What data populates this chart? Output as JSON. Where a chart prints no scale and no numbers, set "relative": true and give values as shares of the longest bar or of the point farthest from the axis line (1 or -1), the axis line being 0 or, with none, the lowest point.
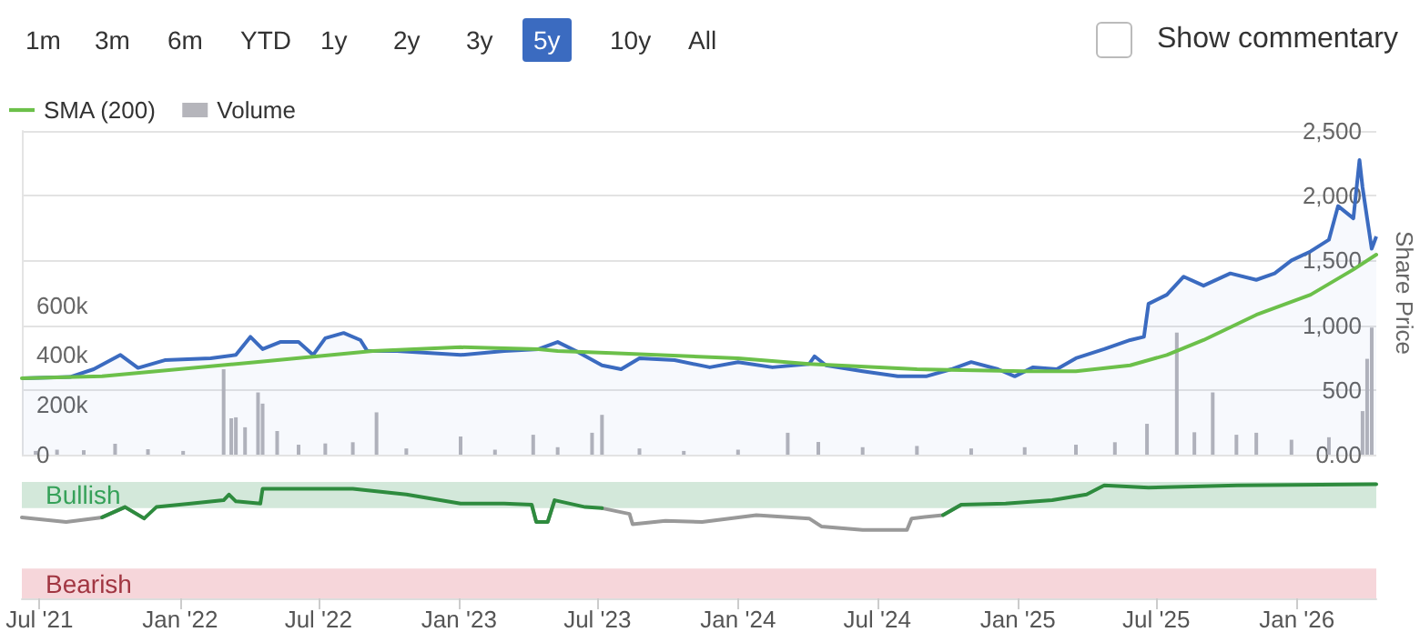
{
  "chart_data": [
    {
      "type": "area",
      "annotations": [
        "1m",
        "3m",
        "6m",
        "YTD",
        "1y",
        "2y",
        "3y",
        "5y",
        "10y",
        "All",
        "Show commentary"
      ],
      "ylabel": "Share Price",
      "legend": "top left",
      "grid": "y",
      "marker": "none",
      "line_style": "solid",
      "tick_labels": "y",
      "xlim": [
        "2021-06-08",
        "2026-04-15"
      ],
      "ylim": [
        0,
        2500
      ],
      "yticks": [
        {
          "value": 0,
          "label": "0.00"
        },
        {
          "value": 500,
          "label": "500"
        },
        {
          "value": 1000,
          "label": "1,000"
        },
        {
          "value": 1500,
          "label": "1,500"
        },
        {
          "value": 2000,
          "label": "2,000"
        },
        {
          "value": 2500,
          "label": "2,500"
        }
      ],
      "y2lim": [
        0,
        1300000
      ],
      "y2ticks": [
        0,
        {
          "value": 200000,
          "label": "200k"
        },
        {
          "value": 400000,
          "label": "400k"
        },
        {
          "value": 600000,
          "label": "600k"
        }
      ],
      "series": [
        {
          "color": "#3b6bc0",
          "x": [
            "2021-06-08",
            "2021-08-10",
            "2021-09-10",
            "2021-10-15",
            "2021-11-07",
            "2021-12-12",
            "2022-02-10",
            "2022-03-15",
            "2022-04-03",
            "2022-04-19",
            "2022-05-12",
            "2022-06-05",
            "2022-06-24",
            "2022-07-10",
            "2022-08-03",
            "2022-08-25",
            "2022-09-03",
            "2022-10-12",
            "2023-01-03",
            "2023-03-01",
            "2023-04-15",
            "2023-05-10",
            "2023-06-03",
            "2023-07-07",
            "2023-08-01",
            "2023-08-25",
            "2023-10-10",
            "2023-11-25",
            "2024-01-01",
            "2024-02-15",
            "2024-04-03",
            "2024-04-10",
            "2024-04-25",
            "2024-06-12",
            "2024-07-28",
            "2024-09-03",
            "2024-10-06",
            "2024-11-01",
            "2024-12-06",
            "2024-12-28",
            "2025-01-21",
            "2025-02-21",
            "2025-03-18",
            "2025-04-24",
            "2025-05-28",
            "2025-06-15",
            "2025-06-21",
            "2025-07-15",
            "2025-08-06",
            "2025-09-01",
            "2025-10-06",
            "2025-11-09",
            "2025-12-03",
            "2025-12-25",
            "2026-01-19",
            "2026-02-12",
            "2026-02-24",
            "2026-03-16",
            "2026-03-24",
            "2026-03-28",
            "2026-04-03",
            "2026-04-09",
            "2026-04-15"
          ],
          "values": [
            590,
            600,
            660,
            770,
            670,
            730,
            745,
            770,
            910,
            815,
            870,
            870,
            770,
            900,
            940,
            885,
            800,
            800,
            770,
            800,
            815,
            870,
            800,
            690,
            660,
            745,
            730,
            675,
            715,
            675,
            700,
            760,
            690,
            645,
            605,
            605,
            660,
            715,
            660,
            605,
            675,
            660,
            745,
            815,
            885,
            910,
            1165,
            1235,
            1375,
            1305,
            1400,
            1350,
            1400,
            1500,
            1570,
            1660,
            1920,
            1825,
            2275,
            2065,
            1825,
            1590,
            1685
          ]
        },
        {
          "type": "line",
          "name": "SMA (200)",
          "color": "#6cc04a",
          "x": [
            "2021-06-08",
            "2021-09-21",
            "2022-04-10",
            "2022-09-10",
            "2023-01-03",
            "2023-04-15",
            "2023-05-10",
            "2023-07-20",
            "2024-01-01",
            "2024-04-03",
            "2024-08-22",
            "2025-01-10",
            "2025-03-18",
            "2025-05-28",
            "2025-07-15",
            "2025-09-01",
            "2025-11-09",
            "2026-01-19",
            "2026-03-16",
            "2026-04-15"
          ],
          "values": [
            590,
            605,
            715,
            800,
            830,
            815,
            800,
            785,
            745,
            700,
            660,
            645,
            645,
            690,
            770,
            885,
            1080,
            1235,
            1430,
            1545
          ]
        },
        {
          "type": "bar",
          "name": "Volume",
          "axis": "y2",
          "color": "#b5b5bb",
          "x": [
            "2021-06-26",
            "2021-07-24",
            "2021-08-28",
            "2021-10-08",
            "2021-11-20",
            "2022-01-05",
            "2022-02-27",
            "2022-03-09",
            "2022-03-15",
            "2022-03-27",
            "2022-04-13",
            "2022-04-19",
            "2022-05-08",
            "2022-06-05",
            "2022-07-10",
            "2022-08-15",
            "2022-09-15",
            "2022-10-24",
            "2023-01-03",
            "2023-02-17",
            "2023-04-08",
            "2023-05-10",
            "2023-06-24",
            "2023-07-07",
            "2023-08-25",
            "2023-10-22",
            "2024-01-01",
            "2024-03-06",
            "2024-04-15",
            "2024-06-12",
            "2024-08-22",
            "2024-11-01",
            "2025-01-10",
            "2025-03-18",
            "2025-05-08",
            "2025-06-19",
            "2025-07-28",
            "2025-08-20",
            "2025-09-13",
            "2025-10-14",
            "2025-11-09",
            "2025-12-25",
            "2026-02-12",
            "2026-03-28",
            "2026-04-03",
            "2026-04-09"
          ],
          "values": [
            15000,
            20000,
            18000,
            44000,
            22000,
            15000,
            343000,
            146000,
            150000,
            110000,
            250000,
            205000,
            95000,
            40000,
            45000,
            50000,
            170000,
            25000,
            73000,
            20000,
            80000,
            30000,
            88000,
            160000,
            25000,
            15000,
            20000,
            88000,
            51000,
            30000,
            35000,
            25000,
            30000,
            40000,
            50000,
            124000,
            490000,
            90000,
            250000,
            80000,
            88000,
            60000,
            70000,
            175000,
            385000,
            510000
          ]
        }
      ]
    },
    {
      "type": "line",
      "line_style": "solid",
      "marker": "none",
      "grid": false,
      "relative": true,
      "annotations": [
        "0"
      ],
      "xlim": [
        "2021-06-08",
        "2026-04-15"
      ],
      "xticks": [
        {
          "value": "2021-07-01",
          "label": "Jul '21"
        },
        {
          "value": "2022-01-01",
          "label": "Jan '22"
        },
        {
          "value": "2022-07-01",
          "label": "Jul '22"
        },
        {
          "value": "2023-01-01",
          "label": "Jan '23"
        },
        {
          "value": "2023-07-01",
          "label": "Jul '23"
        },
        {
          "value": "2024-01-01",
          "label": "Jan '24"
        },
        {
          "value": "2024-07-01",
          "label": "Jul '24"
        },
        {
          "value": "2025-01-01",
          "label": "Jan '25"
        },
        {
          "value": "2025-07-01",
          "label": "Jul '25"
        },
        {
          "value": "2026-01-01",
          "label": "Jan '26"
        }
      ],
      "bands": [
        {
          "axis": "y",
          "from": 0.79,
          "to": 1.02,
          "label": "Bullish",
          "color": "#d3e8da"
        },
        {
          "axis": "y",
          "from": 0,
          "to": 0.26,
          "label": "Bearish",
          "color": "#f6d6da"
        }
      ],
      "x": [
        "2021-06-08",
        "2021-08-05",
        "2021-09-21",
        "2021-10-21",
        "2021-11-15",
        "2021-12-01",
        "2022-01-15",
        "2022-02-27",
        "2022-03-06",
        "2022-03-15",
        "2022-04-16",
        "2022-04-19",
        "2022-05-24",
        "2022-08-15",
        "2022-10-24",
        "2023-01-03",
        "2023-03-01",
        "2023-04-06",
        "2023-04-12",
        "2023-04-27",
        "2023-05-06",
        "2023-06-15",
        "2023-07-07",
        "2023-08-12",
        "2023-08-16",
        "2023-09-28",
        "2023-11-15",
        "2024-01-25",
        "2024-04-03",
        "2024-04-19",
        "2024-06-12",
        "2024-08-09",
        "2024-08-15",
        "2024-09-25",
        "2024-10-19",
        "2024-12-16",
        "2025-02-15",
        "2025-04-01",
        "2025-04-24",
        "2025-06-21",
        "2025-10-15",
        "2026-04-15"
      ],
      "series": [
        {
          "color": "#999999",
          "values": [
            0.71,
            0.67,
            0.71,
            0.8,
            0.7,
            null,
            null,
            null,
            null,
            null,
            null,
            null,
            null,
            null,
            null,
            null,
            null,
            0.82,
            0.67,
            0.67,
            0.86,
            null,
            0.79,
            0.74,
            0.65,
            0.68,
            0.67,
            0.73,
            0.7,
            0.63,
            0.6,
            0.6,
            0.7,
            0.73,
            0.82,
            null,
            null,
            null,
            null,
            null,
            null,
            null
          ]
        },
        {
          "color": "#2e8b3e",
          "values": [
            null,
            null,
            0.71,
            0.8,
            0.7,
            0.8,
            0.83,
            0.86,
            0.91,
            0.85,
            0.83,
            0.96,
            0.96,
            0.96,
            0.91,
            0.83,
            0.83,
            0.82,
            0.67,
            0.67,
            0.86,
            0.8,
            0.79,
            null,
            null,
            null,
            null,
            null,
            null,
            null,
            null,
            null,
            null,
            0.73,
            0.82,
            0.83,
            0.86,
            0.91,
            0.99,
            0.97,
            0.99,
            1
          ]
        }
      ]
    }
  ]
}
